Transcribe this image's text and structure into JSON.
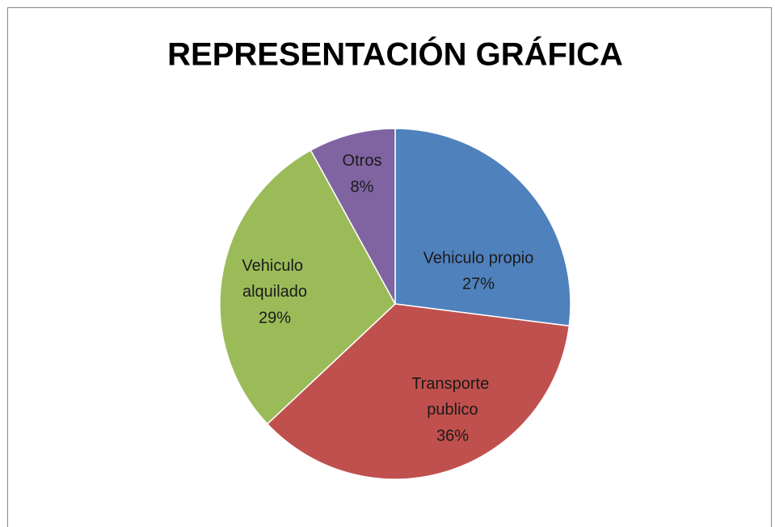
{
  "chart_data": {
    "type": "pie",
    "title": "REPRESENTACIÓN GRÁFICA",
    "categories": [
      "Vehiculo propio",
      "Transporte publico",
      "Vehiculo alquilado",
      "Otros"
    ],
    "values": [
      27,
      36,
      29,
      8
    ],
    "value_labels": [
      "27%",
      "36%",
      "29%",
      "8%"
    ],
    "colors": [
      "#4f81bd",
      "#c0504d",
      "#9bbb59",
      "#8064a2"
    ]
  }
}
